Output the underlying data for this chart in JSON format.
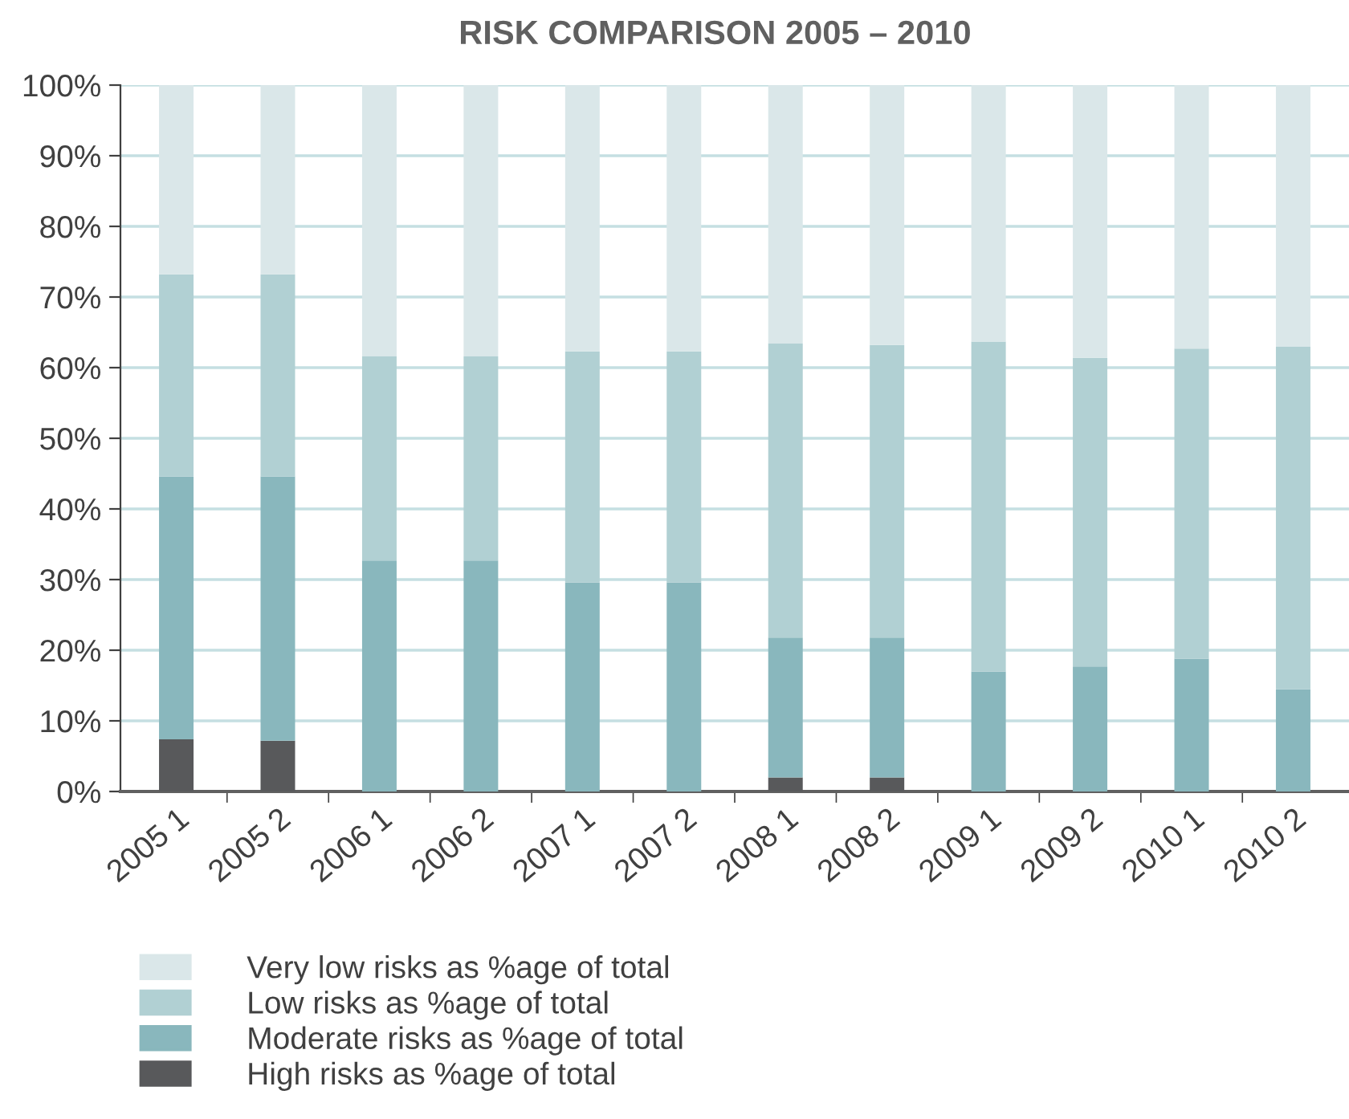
{
  "chart_data": {
    "type": "bar",
    "title": "RISK COMPARISON 2005 – 2010",
    "stacked": true,
    "categories": [
      "2005 1",
      "2005 2",
      "2006 1",
      "2006 2",
      "2007 1",
      "2007 2",
      "2008 1",
      "2008 2",
      "2009 1",
      "2009 2",
      "2010 1",
      "2010 2"
    ],
    "series": [
      {
        "name": "High risks as %age of total",
        "color": "#58595b",
        "values": [
          7.4,
          7.2,
          0,
          0,
          0,
          0,
          2.0,
          2.0,
          0,
          0,
          0,
          0
        ]
      },
      {
        "name": "Moderate risks as %age of total",
        "color": "#89b7bd",
        "values": [
          37.2,
          37.4,
          32.7,
          32.7,
          29.6,
          29.6,
          19.8,
          19.8,
          17.0,
          17.7,
          18.8,
          14.5
        ]
      },
      {
        "name": "Low risks as %age of total",
        "color": "#b1d0d3",
        "values": [
          28.6,
          28.6,
          28.9,
          28.9,
          32.7,
          32.7,
          41.6,
          41.4,
          46.7,
          43.7,
          43.9,
          48.5
        ]
      },
      {
        "name": "Very low risks as %age of total",
        "color": "#dae7e9",
        "values": [
          26.8,
          26.8,
          38.4,
          38.4,
          37.7,
          37.7,
          36.6,
          36.8,
          36.3,
          38.6,
          37.3,
          37.0
        ]
      }
    ],
    "ylim": [
      0,
      100
    ],
    "yticks": [
      {
        "value": 0,
        "label": "0%"
      },
      {
        "value": 10,
        "label": "10%"
      },
      {
        "value": 20,
        "label": "20%"
      },
      {
        "value": 30,
        "label": "30%"
      },
      {
        "value": 40,
        "label": "40%"
      },
      {
        "value": 50,
        "label": "50%"
      },
      {
        "value": 60,
        "label": "60%"
      },
      {
        "value": 70,
        "label": "70%"
      },
      {
        "value": 80,
        "label": "80%"
      },
      {
        "value": 90,
        "label": "90%"
      },
      {
        "value": 100,
        "label": "100%"
      }
    ],
    "grid": "y",
    "legend": "bottom left"
  }
}
